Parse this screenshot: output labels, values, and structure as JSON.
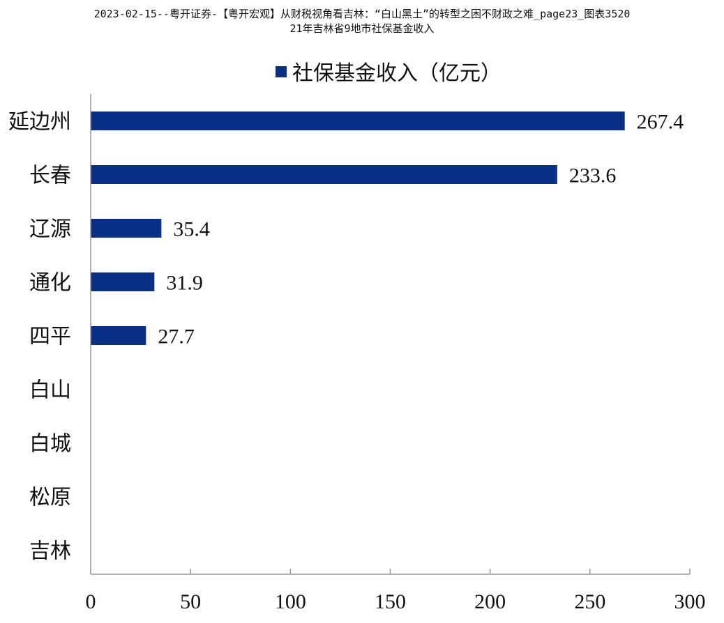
{
  "header": {
    "title_line1": "2023-02-15--粤开证券-【粤开宏观】从财税视角看吉林：“白山黑土”的转型之困不财政之难_page23_图表3520",
    "title_line2": "21年吉林省9地市社保基金收入"
  },
  "chart_data": {
    "type": "bar",
    "orientation": "horizontal",
    "categories": [
      "延边州",
      "长春",
      "辽源",
      "通化",
      "四平",
      "白山",
      "白城",
      "松原",
      "吉林"
    ],
    "series": [
      {
        "name": "社保基金收入（亿元）",
        "values": [
          267.4,
          233.6,
          35.4,
          31.9,
          27.7,
          null,
          null,
          null,
          null
        ],
        "labels": [
          "267.4",
          "233.6",
          "35.4",
          "31.9",
          "27.7",
          "",
          "",
          "",
          ""
        ]
      }
    ],
    "xlim": [
      0,
      300
    ],
    "xticks": [
      "0",
      "50",
      "100",
      "150",
      "200",
      "250",
      "300"
    ],
    "legend_position": "top",
    "grid": false,
    "colors": {
      "bar": "#0a2f86",
      "axis": "#999999",
      "text": "#111111"
    }
  }
}
